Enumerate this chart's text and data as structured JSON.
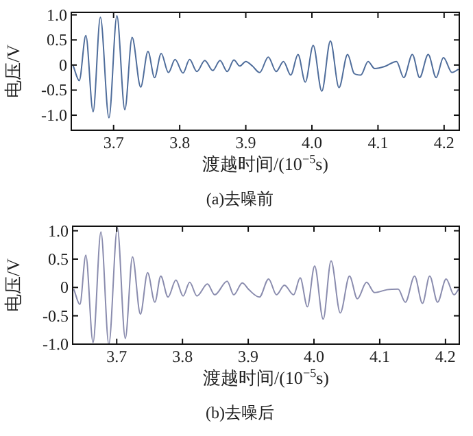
{
  "chart_data": [
    {
      "type": "line",
      "title": "(a)去噪前",
      "xlabel": "渡越时间/(10$^{−5}$s)",
      "ylabel": "电压/V",
      "xlim": [
        3.636,
        4.223
      ],
      "ylim": [
        -1.3,
        1.05
      ],
      "xticks": [
        {
          "value": 3.7,
          "label": "3.7"
        },
        {
          "value": 3.8,
          "label": "3.8"
        },
        {
          "value": 3.9,
          "label": "3.9"
        },
        {
          "value": 4.0,
          "label": "4.0"
        },
        {
          "value": 4.1,
          "label": "4.1"
        },
        {
          "value": 4.2,
          "label": "4.2"
        }
      ],
      "yticks": [
        {
          "value": 1.0,
          "label": "1.0"
        },
        {
          "value": 0.5,
          "label": "0.5"
        },
        {
          "value": 0,
          "label": "0"
        },
        {
          "value": -0.5,
          "label": "-0.5"
        },
        {
          "value": -1.0,
          "label": "-1.0"
        }
      ],
      "x": [
        3.639,
        3.648,
        3.658,
        3.669,
        3.68,
        3.693,
        3.705,
        3.717,
        3.728,
        3.741,
        3.752,
        3.762,
        3.772,
        3.783,
        3.793,
        3.805,
        3.815,
        3.826,
        3.838,
        3.85,
        3.861,
        3.872,
        3.882,
        3.891,
        3.9,
        3.91,
        3.921,
        3.934,
        3.946,
        3.957,
        3.968,
        3.979,
        3.99,
        4.002,
        4.015,
        4.028,
        4.041,
        4.054,
        4.064,
        4.074,
        4.085,
        4.095,
        4.11,
        4.128,
        4.139,
        4.152,
        4.163,
        4.176,
        4.188,
        4.199,
        4.212,
        4.221
      ],
      "series": [
        {
          "color": "#4f6d9b",
          "values": [
            -0.02,
            -0.31,
            0.59,
            -0.93,
            0.95,
            -1.05,
            0.98,
            -0.89,
            0.55,
            -0.44,
            0.27,
            -0.25,
            0.23,
            -0.15,
            0.11,
            -0.16,
            0.11,
            -0.13,
            0.09,
            -0.11,
            0.09,
            -0.13,
            0.1,
            -0.02,
            0.07,
            -0.02,
            -0.15,
            0.16,
            -0.13,
            0.07,
            -0.2,
            0.21,
            -0.34,
            0.39,
            -0.52,
            0.48,
            -0.45,
            0.21,
            -0.17,
            -0.2,
            0.07,
            -0.07,
            -0.03,
            0.07,
            -0.25,
            0.21,
            -0.25,
            0.21,
            -0.25,
            0.15,
            -0.15,
            -0.09
          ]
        }
      ]
    },
    {
      "type": "line",
      "title": "(b)去噪后",
      "xlabel": "渡越时间/(10$^{−5}$s)",
      "ylabel": "电压/V",
      "xlim": [
        3.633,
        4.221
      ],
      "ylim": [
        -1.0,
        1.08
      ],
      "xticks": [
        {
          "value": 3.7,
          "label": "3.7"
        },
        {
          "value": 3.8,
          "label": "3.8"
        },
        {
          "value": 3.9,
          "label": "3.9"
        },
        {
          "value": 4.0,
          "label": "4.0"
        },
        {
          "value": 4.1,
          "label": "4.1"
        },
        {
          "value": 4.2,
          "label": "4.2"
        }
      ],
      "yticks": [
        {
          "value": 1.0,
          "label": "1.0"
        },
        {
          "value": 0.5,
          "label": "0.5"
        },
        {
          "value": 0,
          "label": "0"
        },
        {
          "value": -0.5,
          "label": "-0.5"
        },
        {
          "value": -1.0,
          "label": "-1.0"
        }
      ],
      "x": [
        3.635,
        3.644,
        3.653,
        3.664,
        3.676,
        3.688,
        3.701,
        3.713,
        3.724,
        3.736,
        3.747,
        3.758,
        3.767,
        3.778,
        3.79,
        3.801,
        3.811,
        3.822,
        3.838,
        3.849,
        3.868,
        3.878,
        3.891,
        3.901,
        3.917,
        3.931,
        3.943,
        3.955,
        3.969,
        3.979,
        3.99,
        4.001,
        4.014,
        4.026,
        4.04,
        4.054,
        4.066,
        4.08,
        4.092,
        4.111,
        4.128,
        4.139,
        4.153,
        4.165,
        4.176,
        4.188,
        4.201,
        4.213,
        4.22
      ],
      "series": [
        {
          "color": "#8a8cae",
          "values": [
            -0.04,
            -0.3,
            0.57,
            -0.97,
            0.98,
            -1.0,
            1.05,
            -0.9,
            0.54,
            -0.47,
            0.26,
            -0.26,
            0.2,
            -0.17,
            0.13,
            -0.15,
            0.09,
            -0.15,
            0.06,
            -0.13,
            0.11,
            -0.13,
            0.08,
            -0.04,
            -0.17,
            0.15,
            -0.13,
            0.04,
            -0.13,
            0.17,
            -0.34,
            0.38,
            -0.56,
            0.47,
            -0.45,
            0.2,
            -0.2,
            0.09,
            -0.09,
            -0.04,
            -0.03,
            -0.26,
            0.2,
            -0.28,
            0.2,
            -0.26,
            0.15,
            -0.13,
            -0.03
          ]
        }
      ]
    }
  ]
}
